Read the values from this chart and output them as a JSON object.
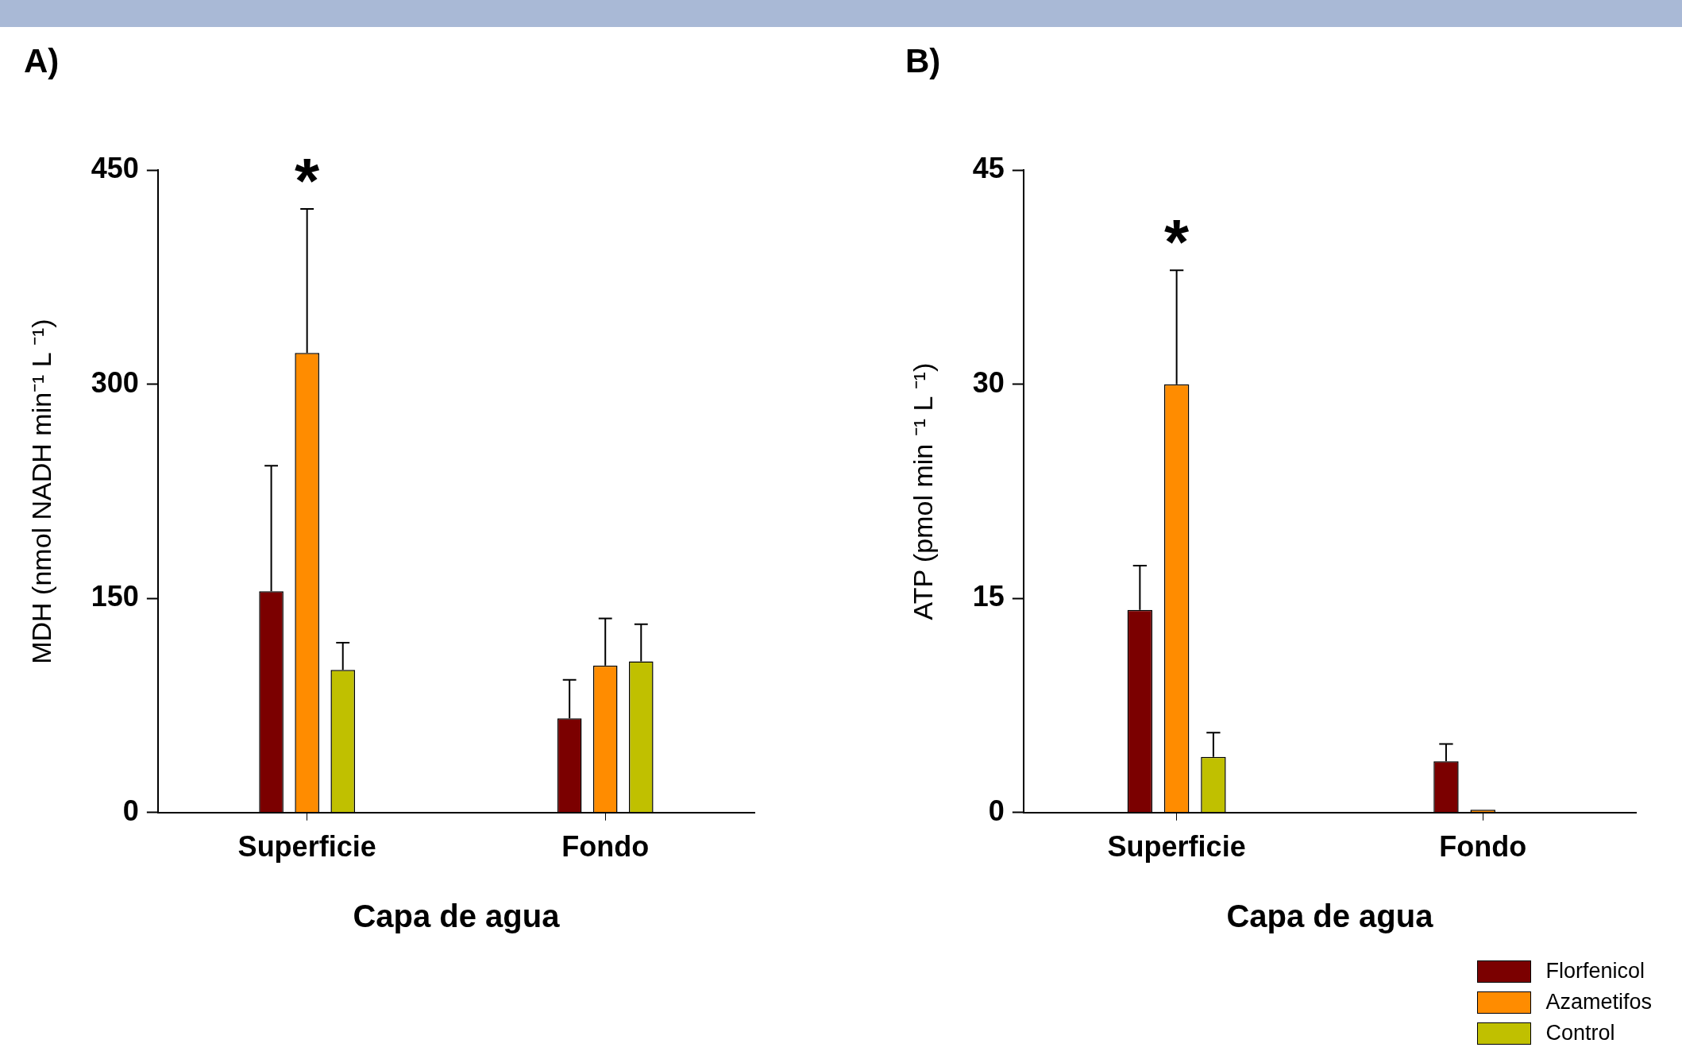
{
  "chart_data": [
    {
      "type": "bar",
      "title": "A)",
      "xlabel": "Capa de agua",
      "ylabel": "MDH (nmol NADH min⁻¹ L ⁻¹)",
      "categories": [
        "Superficie",
        "Fondo"
      ],
      "ylim": [
        0,
        450
      ],
      "yticks": [
        0,
        150,
        300,
        450
      ],
      "legend": false,
      "series": [
        {
          "color": "#7b0000",
          "values": [
            155,
            66
          ],
          "errors": [
            [
              155,
              243
            ],
            [
              66,
              93
            ]
          ]
        },
        {
          "color": "#ff8c00",
          "values": [
            322,
            103
          ],
          "errors": [
            [
              322,
              423
            ],
            [
              103,
              136
            ]
          ]
        },
        {
          "color": "#c0c000",
          "values": [
            100,
            106
          ],
          "errors": [
            [
              100,
              119
            ],
            [
              106,
              132
            ]
          ]
        }
      ],
      "annotations": [
        "*"
      ]
    },
    {
      "type": "bar",
      "title": "B)",
      "xlabel": "Capa de agua",
      "ylabel": "ATP (pmol min ⁻¹ L ⁻¹)",
      "categories": [
        "Superficie",
        "Fondo"
      ],
      "ylim": [
        0,
        45
      ],
      "yticks": [
        0,
        15,
        30,
        45
      ],
      "legend": "bottom right",
      "series": [
        {
          "name": "Florfenicol",
          "color": "#7b0000",
          "values": [
            14.2,
            3.6
          ],
          "errors": [
            [
              14.2,
              17.3
            ],
            [
              3.6,
              4.8
            ]
          ]
        },
        {
          "name": "Azametifos",
          "color": "#ff8c00",
          "values": [
            30,
            0.2
          ],
          "errors": [
            [
              30,
              38
            ],
            null
          ]
        },
        {
          "name": "Control",
          "color": "#c0c000",
          "values": [
            3.9,
            null
          ],
          "errors": [
            [
              3.9,
              5.6
            ],
            null
          ]
        }
      ],
      "annotations": [
        "*"
      ]
    }
  ]
}
